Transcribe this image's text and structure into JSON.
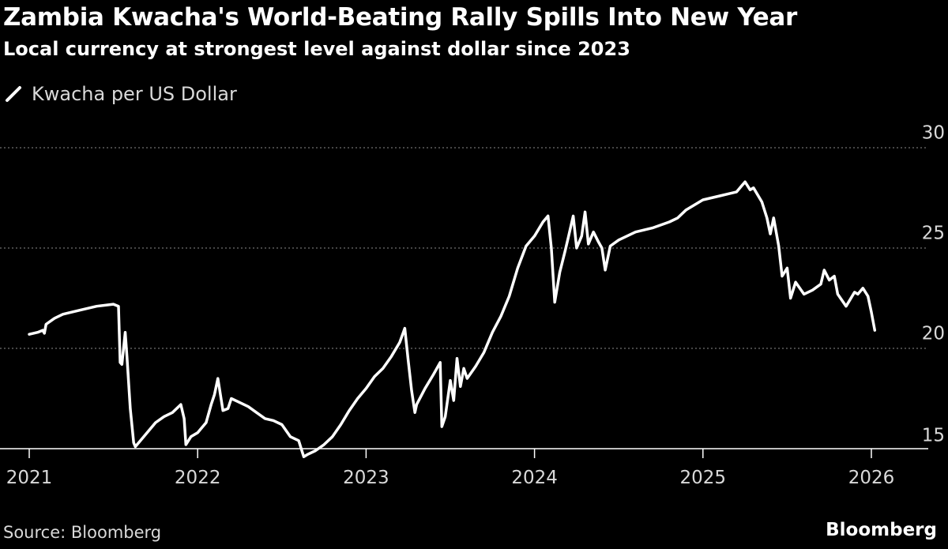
{
  "colors": {
    "background": "#000000",
    "line": "#ffffff",
    "grid": "#8c8c8c",
    "text": "#d9d9d9"
  },
  "footer": {
    "source": "Source: Bloomberg",
    "brand": "Bloomberg"
  },
  "chart_data": {
    "type": "line",
    "title": "Zambia Kwacha's World-Beating Rally Spills Into New Year",
    "subtitle": "Local currency at strongest level against dollar since 2023",
    "xlabel": "",
    "ylabel": "",
    "ylim": [
      15,
      30
    ],
    "xlim": [
      2021.0,
      2026.0
    ],
    "y_ticks": [
      15,
      20,
      25,
      30
    ],
    "x_ticks": [
      "2021",
      "2022",
      "2023",
      "2024",
      "2025",
      "2026"
    ],
    "grid": "horizontal dotted at 20, 25, 30",
    "legend_position": "top-left",
    "series": [
      {
        "name": "Kwacha per US Dollar",
        "x": [
          2021.0,
          2021.05,
          2021.08,
          2021.09,
          2021.1,
          2021.15,
          2021.2,
          2021.3,
          2021.4,
          2021.5,
          2021.53,
          2021.54,
          2021.55,
          2021.57,
          2021.58,
          2021.6,
          2021.62,
          2021.63,
          2021.65,
          2021.7,
          2021.75,
          2021.8,
          2021.85,
          2021.9,
          2021.92,
          2021.93,
          2021.96,
          2022.0,
          2022.05,
          2022.08,
          2022.1,
          2022.12,
          2022.15,
          2022.18,
          2022.2,
          2022.25,
          2022.3,
          2022.35,
          2022.4,
          2022.45,
          2022.5,
          2022.55,
          2022.6,
          2022.63,
          2022.65,
          2022.7,
          2022.75,
          2022.8,
          2022.85,
          2022.9,
          2022.95,
          2023.0,
          2023.05,
          2023.1,
          2023.15,
          2023.2,
          2023.23,
          2023.25,
          2023.27,
          2023.29,
          2023.3,
          2023.35,
          2023.4,
          2023.44,
          2023.45,
          2023.47,
          2023.5,
          2023.52,
          2023.54,
          2023.56,
          2023.58,
          2023.6,
          2023.65,
          2023.7,
          2023.75,
          2023.8,
          2023.85,
          2023.9,
          2023.95,
          2024.0,
          2024.05,
          2024.08,
          2024.1,
          2024.12,
          2024.15,
          2024.18,
          2024.2,
          2024.23,
          2024.25,
          2024.28,
          2024.3,
          2024.32,
          2024.35,
          2024.38,
          2024.4,
          2024.42,
          2024.45,
          2024.5,
          2024.6,
          2024.7,
          2024.8,
          2024.85,
          2024.9,
          2025.0,
          2025.1,
          2025.15,
          2025.2,
          2025.23,
          2025.25,
          2025.28,
          2025.3,
          2025.35,
          2025.38,
          2025.4,
          2025.42,
          2025.45,
          2025.47,
          2025.5,
          2025.52,
          2025.55,
          2025.6,
          2025.65,
          2025.7,
          2025.72,
          2025.75,
          2025.78,
          2025.8,
          2025.85,
          2025.9,
          2025.92,
          2025.95,
          2025.98,
          2026.0,
          2026.02
        ],
        "values": [
          20.7,
          20.8,
          20.9,
          20.75,
          21.2,
          21.5,
          21.7,
          21.9,
          22.1,
          22.2,
          22.1,
          19.3,
          19.2,
          20.8,
          19.6,
          17.0,
          15.3,
          15.1,
          15.3,
          15.8,
          16.3,
          16.6,
          16.8,
          17.2,
          16.5,
          15.2,
          15.6,
          15.8,
          16.3,
          17.2,
          17.7,
          18.5,
          16.9,
          17.0,
          17.5,
          17.3,
          17.1,
          16.8,
          16.5,
          16.4,
          16.2,
          15.6,
          15.4,
          14.6,
          14.7,
          14.9,
          15.2,
          15.6,
          16.2,
          16.9,
          17.5,
          18.0,
          18.6,
          19.0,
          19.6,
          20.3,
          21.0,
          19.4,
          17.9,
          16.8,
          17.2,
          18.0,
          18.7,
          19.3,
          16.1,
          16.6,
          18.4,
          17.4,
          19.5,
          18.1,
          19.0,
          18.5,
          19.1,
          19.8,
          20.8,
          21.6,
          22.6,
          24.0,
          25.1,
          25.6,
          26.3,
          26.6,
          25.0,
          22.3,
          23.8,
          24.8,
          25.5,
          26.6,
          25.0,
          25.6,
          26.8,
          25.2,
          25.8,
          25.3,
          25.0,
          23.9,
          25.1,
          25.4,
          25.8,
          26.0,
          26.3,
          26.5,
          26.9,
          27.4,
          27.6,
          27.7,
          27.8,
          28.1,
          28.3,
          27.9,
          28.0,
          27.3,
          26.5,
          25.7,
          26.5,
          25.1,
          23.6,
          24.0,
          22.5,
          23.3,
          22.7,
          22.9,
          23.2,
          23.9,
          23.4,
          23.6,
          22.7,
          22.1,
          22.8,
          22.7,
          23.0,
          22.6,
          21.8,
          20.9
        ]
      }
    ]
  }
}
